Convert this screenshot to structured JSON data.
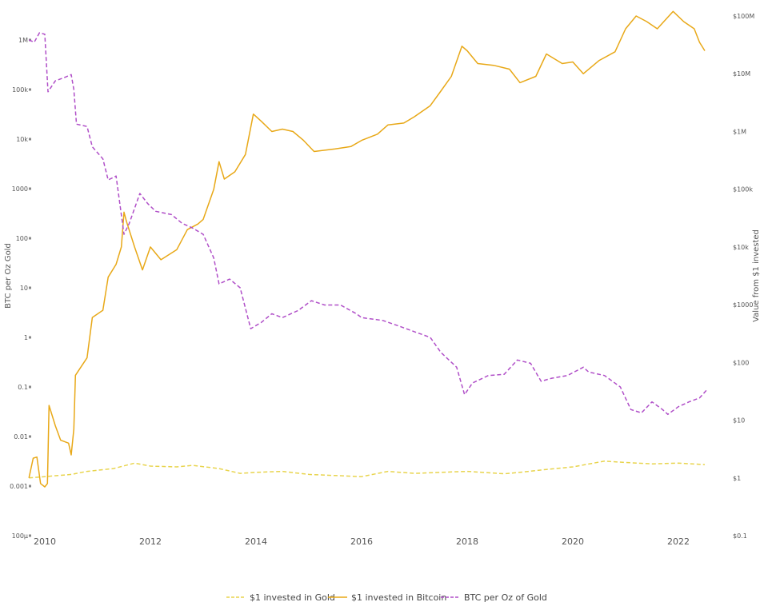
{
  "chart_data": {
    "type": "line",
    "title": "",
    "xlabel": "",
    "ylabel_left": "BTC per Oz Gold",
    "ylabel_right": "Value from $1 invested",
    "x_range": [
      2009.7,
      2022.6
    ],
    "x_ticks": [
      "2010",
      "2012",
      "2014",
      "2016",
      "2018",
      "2020",
      "2022"
    ],
    "left_axis": {
      "scale": "log",
      "range": [
        0.0001,
        3000000
      ],
      "ticks": [
        {
          "v": 1000000,
          "label": "1M"
        },
        {
          "v": 100000,
          "label": "100k"
        },
        {
          "v": 10000,
          "label": "10k"
        },
        {
          "v": 1000,
          "label": "1000"
        },
        {
          "v": 100,
          "label": "100"
        },
        {
          "v": 10,
          "label": "10"
        },
        {
          "v": 1,
          "label": "1"
        },
        {
          "v": 0.1,
          "label": "0.1"
        },
        {
          "v": 0.01,
          "label": "0.01"
        },
        {
          "v": 0.001,
          "label": "0.001"
        },
        {
          "v": 0.0001,
          "label": "100µ"
        }
      ]
    },
    "right_axis": {
      "scale": "log",
      "range": [
        0.1,
        100000000
      ],
      "ticks": [
        {
          "v": 100000000,
          "label": "$100M"
        },
        {
          "v": 10000000,
          "label": "$10M"
        },
        {
          "v": 1000000,
          "label": "$1M"
        },
        {
          "v": 100000,
          "label": "$100k"
        },
        {
          "v": 10000,
          "label": "$10k"
        },
        {
          "v": 1000,
          "label": "$1000"
        },
        {
          "v": 100,
          "label": "$100"
        },
        {
          "v": 10,
          "label": "$10"
        },
        {
          "v": 1,
          "label": "$1"
        },
        {
          "v": 0.1,
          "label": "$0.1"
        }
      ]
    },
    "grid": false,
    "legend_position": "bottom-center",
    "series": [
      {
        "name": "$1 invested in Gold",
        "axis": "right",
        "color": "#e8d44d",
        "dash": "dashed",
        "points": [
          [
            2009.7,
            1.0
          ],
          [
            2010.0,
            1.05
          ],
          [
            2010.5,
            1.15
          ],
          [
            2010.8,
            1.3
          ],
          [
            2011.3,
            1.45
          ],
          [
            2011.7,
            1.8
          ],
          [
            2012.0,
            1.6
          ],
          [
            2012.5,
            1.55
          ],
          [
            2012.8,
            1.65
          ],
          [
            2013.3,
            1.45
          ],
          [
            2013.7,
            1.2
          ],
          [
            2014.0,
            1.25
          ],
          [
            2014.5,
            1.3
          ],
          [
            2015.0,
            1.15
          ],
          [
            2015.5,
            1.1
          ],
          [
            2016.0,
            1.05
          ],
          [
            2016.5,
            1.3
          ],
          [
            2017.0,
            1.2
          ],
          [
            2017.5,
            1.25
          ],
          [
            2018.0,
            1.3
          ],
          [
            2018.7,
            1.18
          ],
          [
            2019.0,
            1.25
          ],
          [
            2019.5,
            1.4
          ],
          [
            2020.0,
            1.55
          ],
          [
            2020.6,
            1.95
          ],
          [
            2021.0,
            1.85
          ],
          [
            2021.5,
            1.75
          ],
          [
            2022.0,
            1.8
          ],
          [
            2022.5,
            1.7
          ]
        ]
      },
      {
        "name": "$1 invested in Bitcoin",
        "axis": "right",
        "color": "#e8a817",
        "dash": "solid",
        "points": [
          [
            2009.7,
            1.0
          ],
          [
            2009.78,
            2.2
          ],
          [
            2009.85,
            2.3
          ],
          [
            2009.92,
            0.8
          ],
          [
            2010.0,
            0.7
          ],
          [
            2010.05,
            0.8
          ],
          [
            2010.08,
            18
          ],
          [
            2010.2,
            8
          ],
          [
            2010.3,
            4.5
          ],
          [
            2010.45,
            4
          ],
          [
            2010.5,
            2.5
          ],
          [
            2010.55,
            7
          ],
          [
            2010.58,
            60
          ],
          [
            2010.8,
            120
          ],
          [
            2010.9,
            600
          ],
          [
            2011.1,
            800
          ],
          [
            2011.2,
            3000
          ],
          [
            2011.35,
            5000
          ],
          [
            2011.45,
            10000
          ],
          [
            2011.5,
            40000
          ],
          [
            2011.55,
            27000
          ],
          [
            2011.7,
            10000
          ],
          [
            2011.85,
            4000
          ],
          [
            2012.0,
            10000
          ],
          [
            2012.2,
            6000
          ],
          [
            2012.5,
            9000
          ],
          [
            2012.7,
            20000
          ],
          [
            2012.9,
            25000
          ],
          [
            2013.0,
            30000
          ],
          [
            2013.2,
            100000
          ],
          [
            2013.3,
            300000
          ],
          [
            2013.4,
            150000
          ],
          [
            2013.6,
            200000
          ],
          [
            2013.8,
            400000
          ],
          [
            2013.95,
            2000000
          ],
          [
            2014.1,
            1500000
          ],
          [
            2014.3,
            1000000
          ],
          [
            2014.5,
            1100000
          ],
          [
            2014.7,
            1000000
          ],
          [
            2014.9,
            700000
          ],
          [
            2015.1,
            450000
          ],
          [
            2015.5,
            500000
          ],
          [
            2015.8,
            550000
          ],
          [
            2016.0,
            700000
          ],
          [
            2016.3,
            900000
          ],
          [
            2016.5,
            1300000
          ],
          [
            2016.8,
            1400000
          ],
          [
            2017.0,
            1800000
          ],
          [
            2017.3,
            2800000
          ],
          [
            2017.5,
            5000000
          ],
          [
            2017.7,
            9000000
          ],
          [
            2017.9,
            30000000
          ],
          [
            2018.0,
            25000000
          ],
          [
            2018.2,
            15000000
          ],
          [
            2018.5,
            14000000
          ],
          [
            2018.8,
            12000000
          ],
          [
            2019.0,
            7000000
          ],
          [
            2019.3,
            9000000
          ],
          [
            2019.5,
            22000000
          ],
          [
            2019.8,
            15000000
          ],
          [
            2020.0,
            16000000
          ],
          [
            2020.2,
            10000000
          ],
          [
            2020.5,
            17000000
          ],
          [
            2020.8,
            24000000
          ],
          [
            2021.0,
            60000000
          ],
          [
            2021.2,
            100000000
          ],
          [
            2021.4,
            80000000
          ],
          [
            2021.6,
            60000000
          ],
          [
            2021.9,
            120000000
          ],
          [
            2022.1,
            80000000
          ],
          [
            2022.3,
            60000000
          ],
          [
            2022.4,
            35000000
          ],
          [
            2022.5,
            25000000
          ]
        ]
      },
      {
        "name": "BTC per Oz of Gold",
        "axis": "left",
        "color": "#b04fc8",
        "dash": "dashed",
        "points": [
          [
            2009.7,
            1000000
          ],
          [
            2009.8,
            900000
          ],
          [
            2009.9,
            1400000
          ],
          [
            2010.0,
            1300000
          ],
          [
            2010.06,
            90000
          ],
          [
            2010.2,
            150000
          ],
          [
            2010.4,
            180000
          ],
          [
            2010.5,
            200000
          ],
          [
            2010.55,
            100000
          ],
          [
            2010.6,
            20000
          ],
          [
            2010.8,
            18000
          ],
          [
            2010.9,
            7000
          ],
          [
            2011.1,
            4000
          ],
          [
            2011.2,
            1500
          ],
          [
            2011.35,
            1800
          ],
          [
            2011.5,
            120
          ],
          [
            2011.6,
            200
          ],
          [
            2011.7,
            400
          ],
          [
            2011.8,
            800
          ],
          [
            2011.95,
            500
          ],
          [
            2012.1,
            350
          ],
          [
            2012.4,
            300
          ],
          [
            2012.6,
            200
          ],
          [
            2012.8,
            160
          ],
          [
            2013.0,
            120
          ],
          [
            2013.2,
            40
          ],
          [
            2013.3,
            12
          ],
          [
            2013.5,
            15
          ],
          [
            2013.7,
            10
          ],
          [
            2013.9,
            1.5
          ],
          [
            2014.1,
            2
          ],
          [
            2014.3,
            3
          ],
          [
            2014.5,
            2.5
          ],
          [
            2014.8,
            3.5
          ],
          [
            2015.05,
            5.5
          ],
          [
            2015.3,
            4.5
          ],
          [
            2015.6,
            4.5
          ],
          [
            2015.9,
            3
          ],
          [
            2016.0,
            2.5
          ],
          [
            2016.4,
            2.2
          ],
          [
            2016.7,
            1.7
          ],
          [
            2017.0,
            1.3
          ],
          [
            2017.3,
            1
          ],
          [
            2017.5,
            0.5
          ],
          [
            2017.8,
            0.25
          ],
          [
            2017.95,
            0.07
          ],
          [
            2018.1,
            0.12
          ],
          [
            2018.4,
            0.17
          ],
          [
            2018.7,
            0.18
          ],
          [
            2018.95,
            0.35
          ],
          [
            2019.2,
            0.3
          ],
          [
            2019.4,
            0.13
          ],
          [
            2019.6,
            0.15
          ],
          [
            2019.9,
            0.17
          ],
          [
            2020.2,
            0.25
          ],
          [
            2020.3,
            0.2
          ],
          [
            2020.6,
            0.17
          ],
          [
            2020.9,
            0.1
          ],
          [
            2021.1,
            0.035
          ],
          [
            2021.3,
            0.03
          ],
          [
            2021.5,
            0.05
          ],
          [
            2021.7,
            0.035
          ],
          [
            2021.8,
            0.028
          ],
          [
            2022.0,
            0.04
          ],
          [
            2022.2,
            0.05
          ],
          [
            2022.4,
            0.06
          ],
          [
            2022.55,
            0.09
          ]
        ]
      }
    ]
  }
}
